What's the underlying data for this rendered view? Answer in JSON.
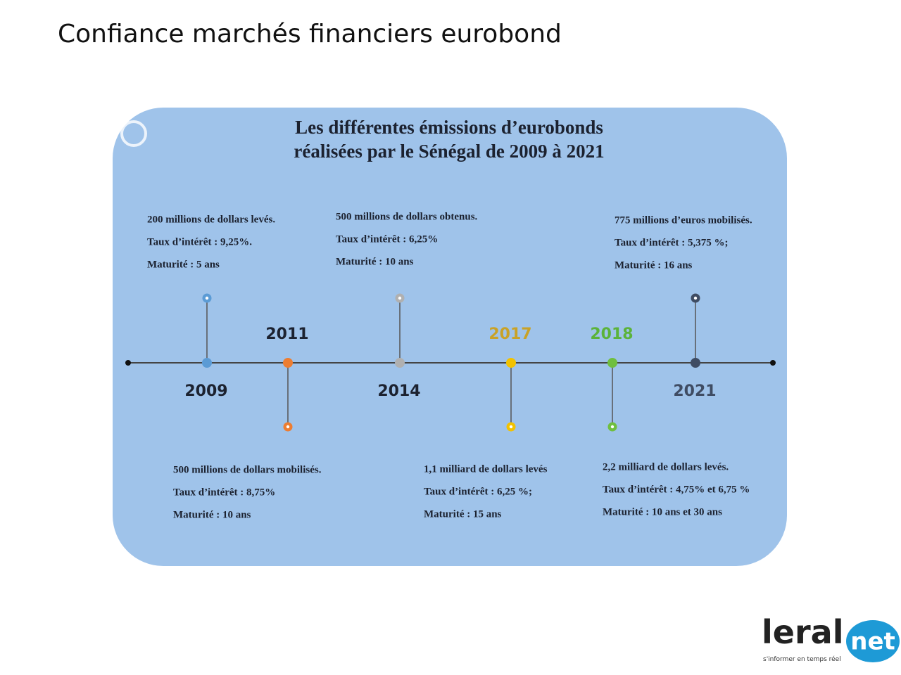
{
  "slide_title": "Confiance marchés financiers eurobond",
  "infographic": {
    "title_lines": [
      "Les différentes émissions d’eurobonds",
      "réalisées par le Sénégal de 2009 à 2021"
    ],
    "events": [
      {
        "year": "2009",
        "lines": [
          "200 millions de dollars levés.",
          "Taux d’intérêt : 9,25%.",
          "Maturité : 5 ans"
        ]
      },
      {
        "year": "2011",
        "lines": [
          "500 millions de dollars mobilisés.",
          "Taux d’intérêt : 8,75%",
          "Maturité :  10 ans"
        ]
      },
      {
        "year": "2014",
        "lines": [
          "500 millions de dollars obtenus.",
          "Taux d’intérêt : 6,25%",
          "Maturité : 10 ans"
        ]
      },
      {
        "year": "2017",
        "lines": [
          "1,1 milliard de dollars levés",
          "Taux d’intérêt : 6,25 %;",
          "Maturité : 15 ans"
        ]
      },
      {
        "year": "2018",
        "lines": [
          "2,2 milliard de dollars levés.",
          "Taux d’intérêt : 4,75% et 6,75 %",
          "Maturité : 10 ans et 30 ans"
        ]
      },
      {
        "year": "2021",
        "lines": [
          "775 millions d’euros mobilisés.",
          "Taux d’intérêt : 5,375 %;",
          "Maturité : 16 ans"
        ]
      }
    ]
  },
  "logo": {
    "name_left": "leral",
    "name_right": "net",
    "tagline": "s'informer en temps réel"
  }
}
